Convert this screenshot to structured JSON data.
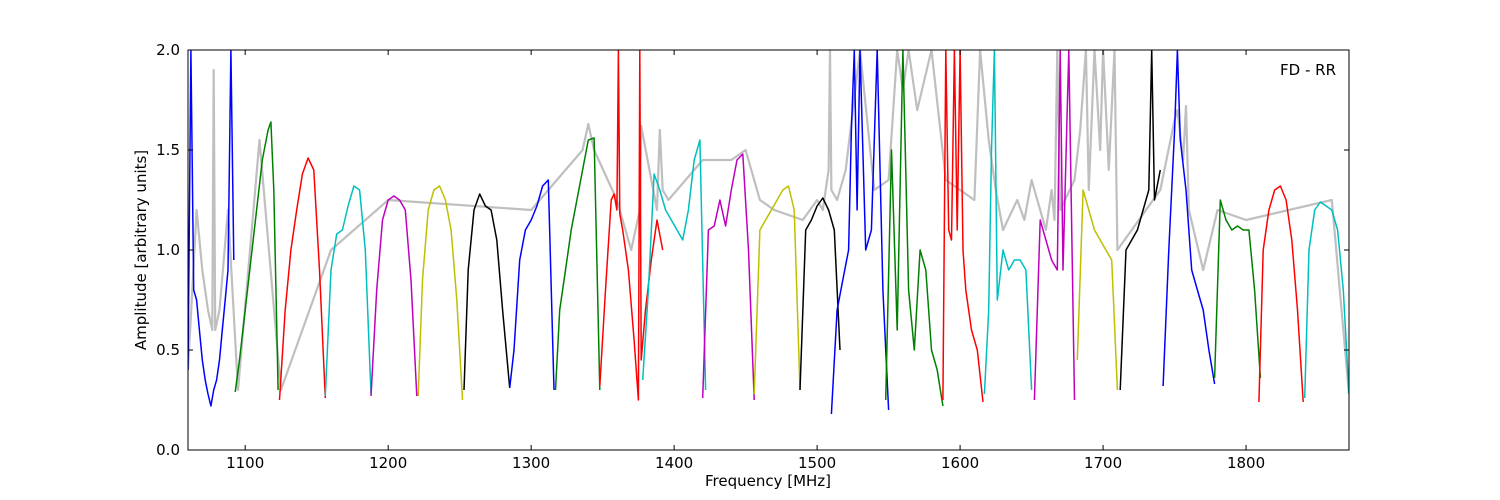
{
  "chart_data": {
    "type": "line",
    "title": "",
    "annotation": "FD - RR",
    "xlabel": "Frequency [MHz]",
    "ylabel": "Amplitude [arbitrary units]",
    "xlim": [
      1060,
      1872
    ],
    "ylim": [
      0,
      2.0
    ],
    "xticks": [
      1100,
      1200,
      1300,
      1400,
      1500,
      1600,
      1700,
      1800
    ],
    "yticks": [
      0.0,
      0.5,
      1.0,
      1.5,
      2.0
    ],
    "ytick_labels": [
      "0.0",
      "0.5",
      "1.0",
      "1.5",
      "2.0"
    ],
    "grid": false,
    "legend": "none",
    "colors": {
      "background_trace": "#bfbfbf",
      "blue": "#0000ff",
      "green": "#008000",
      "red": "#ff0000",
      "cyan": "#00bfbf",
      "magenta": "#bf00bf",
      "olive": "#bfbf00",
      "black": "#000000"
    },
    "series": [
      {
        "color": "blue",
        "x": [
          1060,
          1062,
          1064,
          1066,
          1068,
          1070,
          1072,
          1074,
          1076,
          1078,
          1080,
          1082,
          1084,
          1086,
          1088,
          1090,
          1092
        ],
        "y": [
          0.4,
          2.0,
          0.8,
          0.75,
          0.6,
          0.45,
          0.35,
          0.28,
          0.22,
          0.3,
          0.35,
          0.45,
          0.6,
          0.75,
          0.9,
          2.0,
          0.95
        ]
      },
      {
        "color": "green",
        "x": [
          1093,
          1096,
          1100,
          1104,
          1108,
          1112,
          1116,
          1118,
          1120,
          1123
        ],
        "y": [
          0.29,
          0.45,
          0.7,
          0.95,
          1.2,
          1.45,
          1.6,
          1.64,
          1.3,
          0.3
        ]
      },
      {
        "color": "red",
        "x": [
          1124,
          1128,
          1132,
          1136,
          1140,
          1144,
          1148,
          1152,
          1156
        ],
        "y": [
          0.25,
          0.7,
          1.0,
          1.2,
          1.38,
          1.46,
          1.4,
          0.9,
          0.26
        ]
      },
      {
        "color": "cyan",
        "x": [
          1156,
          1160,
          1164,
          1168,
          1172,
          1176,
          1180,
          1184,
          1188
        ],
        "y": [
          0.27,
          0.9,
          1.08,
          1.1,
          1.22,
          1.32,
          1.3,
          1.0,
          0.28
        ]
      },
      {
        "color": "magenta",
        "x": [
          1188,
          1192,
          1196,
          1200,
          1204,
          1208,
          1212,
          1216,
          1220
        ],
        "y": [
          0.27,
          0.8,
          1.15,
          1.25,
          1.27,
          1.25,
          1.2,
          0.85,
          0.27
        ]
      },
      {
        "color": "olive",
        "x": [
          1221,
          1224,
          1228,
          1232,
          1236,
          1240,
          1244,
          1248,
          1252
        ],
        "y": [
          0.27,
          0.85,
          1.2,
          1.3,
          1.32,
          1.25,
          1.1,
          0.75,
          0.25
        ]
      },
      {
        "color": "black",
        "x": [
          1253,
          1256,
          1260,
          1264,
          1268,
          1272,
          1276,
          1280,
          1285
        ],
        "y": [
          0.3,
          0.9,
          1.2,
          1.28,
          1.22,
          1.2,
          1.05,
          0.7,
          0.31
        ]
      },
      {
        "color": "blue",
        "x": [
          1285,
          1288,
          1292,
          1296,
          1300,
          1304,
          1308,
          1312,
          1316
        ],
        "y": [
          0.31,
          0.5,
          0.95,
          1.1,
          1.15,
          1.22,
          1.32,
          1.35,
          0.3
        ]
      },
      {
        "color": "green",
        "x": [
          1317,
          1320,
          1324,
          1328,
          1332,
          1336,
          1340,
          1344,
          1348
        ],
        "y": [
          0.3,
          0.7,
          0.9,
          1.1,
          1.25,
          1.4,
          1.55,
          1.56,
          0.3
        ]
      },
      {
        "color": "red",
        "x": [
          1348,
          1352,
          1356,
          1358,
          1360,
          1361,
          1362,
          1364,
          1368,
          1372,
          1375,
          1376,
          1377,
          1380,
          1384,
          1388,
          1392
        ],
        "y": [
          0.32,
          0.8,
          1.25,
          1.28,
          1.2,
          2.0,
          1.18,
          1.1,
          0.9,
          0.55,
          0.25,
          2.0,
          0.45,
          0.7,
          0.95,
          1.15,
          1.0
        ]
      },
      {
        "color": "cyan",
        "x": [
          1378,
          1382,
          1386,
          1390,
          1394,
          1398,
          1402,
          1406,
          1410,
          1414,
          1418,
          1422
        ],
        "y": [
          0.35,
          0.8,
          1.38,
          1.3,
          1.2,
          1.15,
          1.1,
          1.05,
          1.2,
          1.45,
          1.55,
          0.3
        ]
      },
      {
        "color": "magenta",
        "x": [
          1420,
          1424,
          1428,
          1432,
          1436,
          1440,
          1444,
          1448,
          1452,
          1456
        ],
        "y": [
          0.26,
          1.1,
          1.12,
          1.25,
          1.12,
          1.3,
          1.45,
          1.48,
          1.0,
          0.25
        ]
      },
      {
        "color": "olive",
        "x": [
          1456,
          1460,
          1464,
          1468,
          1472,
          1476,
          1480,
          1484,
          1488
        ],
        "y": [
          0.28,
          1.1,
          1.15,
          1.2,
          1.25,
          1.3,
          1.32,
          1.2,
          0.3
        ]
      },
      {
        "color": "black",
        "x": [
          1488,
          1492,
          1496,
          1500,
          1504,
          1508,
          1512,
          1516
        ],
        "y": [
          0.3,
          1.1,
          1.15,
          1.22,
          1.26,
          1.2,
          1.1,
          0.5
        ]
      },
      {
        "color": "blue",
        "x": [
          1510,
          1514,
          1518,
          1522,
          1524,
          1526,
          1528,
          1530,
          1534,
          1538,
          1542,
          1546,
          1550
        ],
        "y": [
          0.18,
          0.7,
          0.85,
          1.0,
          1.6,
          2.0,
          1.2,
          2.0,
          1.0,
          1.1,
          2.0,
          0.8,
          0.2
        ]
      },
      {
        "color": "green",
        "x": [
          1548,
          1552,
          1556,
          1560,
          1564,
          1568,
          1572,
          1576,
          1580,
          1584,
          1588
        ],
        "y": [
          0.25,
          1.5,
          0.6,
          2.0,
          0.8,
          0.5,
          1.0,
          0.9,
          0.5,
          0.4,
          0.22
        ]
      },
      {
        "color": "red",
        "x": [
          1588,
          1590,
          1592,
          1594,
          1596,
          1598,
          1600,
          1602,
          1604,
          1608,
          1612,
          1616
        ],
        "y": [
          0.25,
          2.0,
          1.1,
          1.05,
          2.0,
          1.1,
          2.0,
          1.0,
          0.8,
          0.6,
          0.5,
          0.24
        ]
      },
      {
        "color": "cyan",
        "x": [
          1617,
          1620,
          1622,
          1624,
          1626,
          1630,
          1634,
          1638,
          1642,
          1646,
          1650
        ],
        "y": [
          0.28,
          0.7,
          1.5,
          2.0,
          0.75,
          1.0,
          0.9,
          0.95,
          0.95,
          0.9,
          0.3
        ]
      },
      {
        "color": "magenta",
        "x": [
          1652,
          1656,
          1660,
          1664,
          1668,
          1670,
          1672,
          1676,
          1680
        ],
        "y": [
          0.25,
          1.15,
          1.05,
          0.95,
          0.9,
          2.0,
          0.9,
          2.0,
          0.25
        ]
      },
      {
        "color": "olive",
        "x": [
          1682,
          1686,
          1690,
          1694,
          1698,
          1702,
          1706,
          1710
        ],
        "y": [
          0.45,
          1.3,
          1.2,
          1.1,
          1.05,
          1.0,
          0.95,
          0.3
        ]
      },
      {
        "color": "black",
        "x": [
          1712,
          1716,
          1720,
          1724,
          1728,
          1732,
          1734,
          1736,
          1740
        ],
        "y": [
          0.3,
          1.0,
          1.05,
          1.1,
          1.2,
          1.3,
          2.0,
          1.25,
          1.4
        ]
      },
      {
        "color": "blue",
        "x": [
          1742,
          1746,
          1750,
          1752,
          1754,
          1758,
          1762,
          1766,
          1770,
          1774,
          1778
        ],
        "y": [
          0.32,
          1.0,
          1.6,
          2.0,
          1.55,
          1.3,
          0.9,
          0.8,
          0.7,
          0.5,
          0.33
        ]
      },
      {
        "color": "green",
        "x": [
          1778,
          1782,
          1786,
          1790,
          1794,
          1798,
          1802,
          1806,
          1810
        ],
        "y": [
          0.36,
          1.25,
          1.15,
          1.1,
          1.12,
          1.1,
          1.1,
          0.8,
          0.36
        ]
      },
      {
        "color": "red",
        "x": [
          1809,
          1812,
          1816,
          1820,
          1824,
          1828,
          1832,
          1836,
          1840
        ],
        "y": [
          0.24,
          1.0,
          1.2,
          1.3,
          1.32,
          1.25,
          1.05,
          0.7,
          0.24
        ]
      },
      {
        "color": "cyan",
        "x": [
          1841,
          1844,
          1848,
          1852,
          1856,
          1860,
          1864,
          1868,
          1872
        ],
        "y": [
          0.26,
          1.0,
          1.2,
          1.24,
          1.22,
          1.2,
          1.1,
          0.8,
          0.28
        ]
      }
    ],
    "background_series": {
      "color": "background_trace",
      "x": [
        1060,
        1066,
        1070,
        1074,
        1077,
        1078,
        1079,
        1082,
        1088,
        1095,
        1110,
        1125,
        1160,
        1200,
        1300,
        1336,
        1340,
        1344,
        1360,
        1370,
        1376,
        1377,
        1388,
        1390,
        1392,
        1396,
        1420,
        1440,
        1450,
        1460,
        1470,
        1490,
        1500,
        1504,
        1508,
        1509,
        1510,
        1514,
        1520,
        1530,
        1540,
        1550,
        1556,
        1560,
        1564,
        1570,
        1580,
        1590,
        1600,
        1610,
        1614,
        1620,
        1625,
        1630,
        1640,
        1645,
        1650,
        1660,
        1664,
        1666,
        1668,
        1670,
        1680,
        1684,
        1688,
        1690,
        1694,
        1698,
        1700,
        1704,
        1708,
        1710,
        1720,
        1740,
        1750,
        1752,
        1756,
        1758,
        1760,
        1770,
        1780,
        1800,
        1860,
        1872
      ],
      "y": [
        0.4,
        1.2,
        0.9,
        0.7,
        0.6,
        1.9,
        0.6,
        0.7,
        1.2,
        0.3,
        1.55,
        0.3,
        1.0,
        1.25,
        1.2,
        1.5,
        1.63,
        1.5,
        1.25,
        1.0,
        1.2,
        1.62,
        1.2,
        1.6,
        1.3,
        1.25,
        1.45,
        1.45,
        1.5,
        1.25,
        1.2,
        1.15,
        1.25,
        1.2,
        1.4,
        2.0,
        1.3,
        1.25,
        1.4,
        2.0,
        1.3,
        1.35,
        2.0,
        1.8,
        2.0,
        1.7,
        2.0,
        1.35,
        1.3,
        1.25,
        2.0,
        1.55,
        1.3,
        1.1,
        1.25,
        1.15,
        1.35,
        1.1,
        1.3,
        1.15,
        2.0,
        1.2,
        1.35,
        1.6,
        2.0,
        1.3,
        2.0,
        1.5,
        2.0,
        1.4,
        2.0,
        1.0,
        1.1,
        1.3,
        1.65,
        1.7,
        1.45,
        1.72,
        1.2,
        0.9,
        1.2,
        1.15,
        1.25,
        0.28
      ]
    }
  }
}
